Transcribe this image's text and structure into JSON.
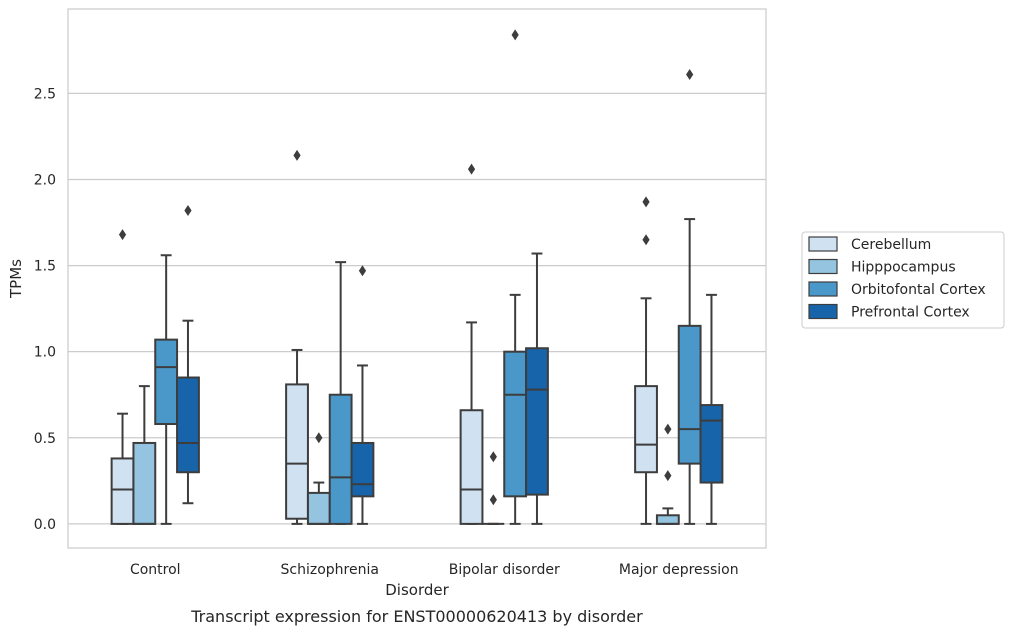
{
  "chart_data": {
    "type": "box",
    "title": "",
    "caption": "Transcript expression for ENST00000620413 by disorder",
    "xlabel": "Disorder",
    "ylabel": "TPMs",
    "ylim": [
      -0.14,
      2.99
    ],
    "yticks": [
      0.0,
      0.5,
      1.0,
      1.5,
      2.0,
      2.5
    ],
    "ytick_labels": [
      "0.0",
      "0.5",
      "1.0",
      "1.5",
      "2.0",
      "2.5"
    ],
    "grid": "horizontal",
    "legend_position": "right",
    "categories": [
      "Control",
      "Schizophrenia",
      "Bipolar disorder",
      "Major depression"
    ],
    "series": [
      {
        "name": "Cerebellum",
        "color": "#d0e1f2",
        "boxes": [
          {
            "whislo": 0.0,
            "q1": 0.0,
            "med": 0.2,
            "q3": 0.38,
            "whishi": 0.64,
            "fliers": [
              1.68
            ]
          },
          {
            "whislo": 0.0,
            "q1": 0.03,
            "med": 0.35,
            "q3": 0.81,
            "whishi": 1.01,
            "fliers": [
              2.14
            ]
          },
          {
            "whislo": 0.0,
            "q1": 0.0,
            "med": 0.2,
            "q3": 0.66,
            "whishi": 1.17,
            "fliers": [
              2.06
            ]
          },
          {
            "whislo": 0.0,
            "q1": 0.3,
            "med": 0.46,
            "q3": 0.8,
            "whishi": 1.31,
            "fliers": [
              1.65,
              1.87
            ]
          }
        ]
      },
      {
        "name": "Hipppocampus",
        "color": "#94c4df",
        "boxes": [
          {
            "whislo": 0.0,
            "q1": 0.0,
            "med": 0.0,
            "q3": 0.47,
            "whishi": 0.8,
            "fliers": []
          },
          {
            "whislo": 0.0,
            "q1": 0.0,
            "med": 0.0,
            "q3": 0.18,
            "whishi": 0.24,
            "fliers": [
              0.5
            ]
          },
          {
            "whislo": 0.0,
            "q1": 0.0,
            "med": 0.0,
            "q3": 0.0,
            "whishi": 0.0,
            "fliers": [
              0.14,
              0.39
            ]
          },
          {
            "whislo": 0.0,
            "q1": 0.0,
            "med": 0.0,
            "q3": 0.05,
            "whishi": 0.09,
            "fliers": [
              0.28,
              0.55
            ]
          }
        ]
      },
      {
        "name": "Orbitofontal Cortex",
        "color": "#4a98c9",
        "boxes": [
          {
            "whislo": 0.0,
            "q1": 0.58,
            "med": 0.91,
            "q3": 1.07,
            "whishi": 1.56,
            "fliers": []
          },
          {
            "whislo": 0.0,
            "q1": 0.0,
            "med": 0.27,
            "q3": 0.75,
            "whishi": 1.52,
            "fliers": []
          },
          {
            "whislo": 0.0,
            "q1": 0.16,
            "med": 0.75,
            "q3": 1.0,
            "whishi": 1.33,
            "fliers": [
              2.84
            ]
          },
          {
            "whislo": 0.0,
            "q1": 0.35,
            "med": 0.55,
            "q3": 1.15,
            "whishi": 1.77,
            "fliers": [
              2.61
            ]
          }
        ]
      },
      {
        "name": "Prefrontal Cortex",
        "color": "#1764ab",
        "boxes": [
          {
            "whislo": 0.12,
            "q1": 0.3,
            "med": 0.47,
            "q3": 0.85,
            "whishi": 1.18,
            "fliers": [
              1.82
            ]
          },
          {
            "whislo": 0.0,
            "q1": 0.16,
            "med": 0.23,
            "q3": 0.47,
            "whishi": 0.92,
            "fliers": [
              1.47
            ]
          },
          {
            "whislo": 0.0,
            "q1": 0.17,
            "med": 0.78,
            "q3": 1.02,
            "whishi": 1.57,
            "fliers": []
          },
          {
            "whislo": 0.0,
            "q1": 0.24,
            "med": 0.6,
            "q3": 0.69,
            "whishi": 1.33,
            "fliers": []
          }
        ]
      }
    ]
  }
}
